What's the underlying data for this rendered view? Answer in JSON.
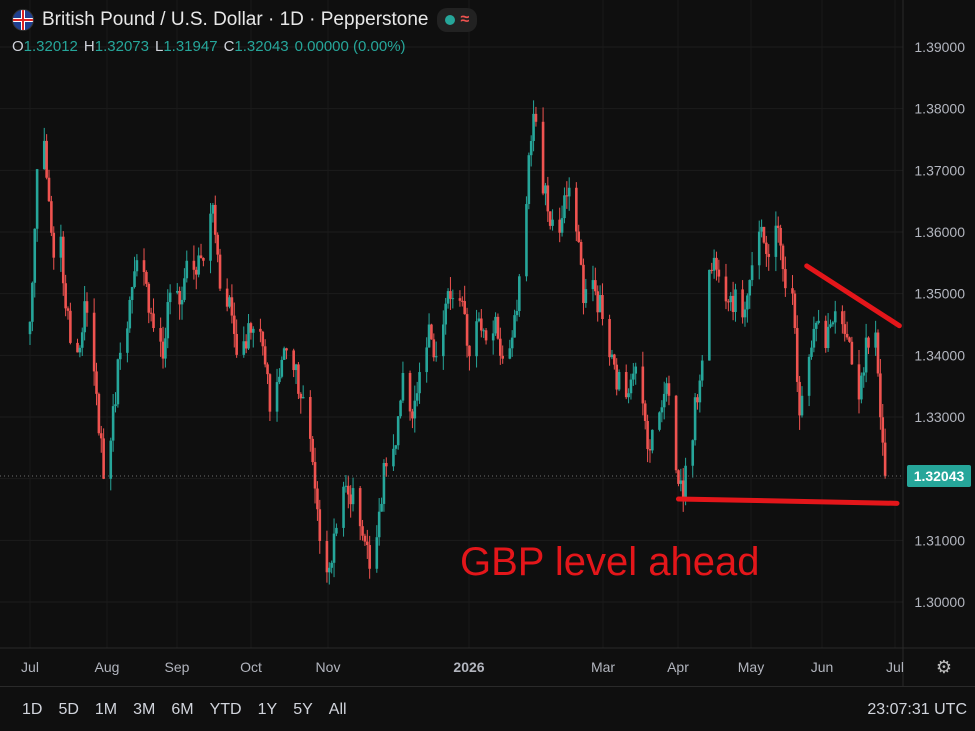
{
  "header": {
    "title": "British Pound / U.S. Dollar · 1D · Pepperstone",
    "ohlc": {
      "o_label": "O",
      "o": "1.32012",
      "h_label": "H",
      "h": "1.32073",
      "l_label": "L",
      "l": "1.31947",
      "c_label": "C",
      "c": "1.32043",
      "change": "0.00000 (0.00%)"
    }
  },
  "timeframes": [
    "1D",
    "5D",
    "1M",
    "3M",
    "6M",
    "YTD",
    "1Y",
    "5Y",
    "All"
  ],
  "clock": "23:07:31 UTC",
  "annotation": "GBP level ahead",
  "colors": {
    "up": "#26a69a",
    "down": "#ef5350",
    "annotation": "#e4161a",
    "background": "#0f0f0f"
  },
  "chart_data": {
    "type": "candlestick",
    "title": "British Pound / U.S. Dollar · 1D · Pepperstone",
    "ylim": [
      1.295,
      1.392
    ],
    "y_ticks": [
      "1.39000",
      "1.38000",
      "1.37000",
      "1.36000",
      "1.35000",
      "1.34000",
      "1.33000",
      "1.32000",
      "1.31000",
      "1.30000"
    ],
    "last_price": "1.32043",
    "x_labels": [
      "Jul",
      "Aug",
      "Sep",
      "Oct",
      "Nov",
      "2026",
      "Mar",
      "Apr",
      "May",
      "Jun",
      "Jul"
    ],
    "close_path": [
      [
        "2025-07-01",
        1.345
      ],
      [
        "2025-07-04",
        1.368
      ],
      [
        "2025-07-07",
        1.374
      ],
      [
        "2025-07-10",
        1.358
      ],
      [
        "2025-07-14",
        1.357
      ],
      [
        "2025-07-17",
        1.345
      ],
      [
        "2025-07-21",
        1.341
      ],
      [
        "2025-07-24",
        1.348
      ],
      [
        "2025-07-28",
        1.336
      ],
      [
        "2025-07-31",
        1.326
      ],
      [
        "2025-08-01",
        1.32
      ],
      [
        "2025-08-05",
        1.33
      ],
      [
        "2025-08-08",
        1.342
      ],
      [
        "2025-08-12",
        1.348
      ],
      [
        "2025-08-15",
        1.354
      ],
      [
        "2025-08-18",
        1.352
      ],
      [
        "2025-08-22",
        1.346
      ],
      [
        "2025-08-26",
        1.34
      ],
      [
        "2025-08-29",
        1.351
      ],
      [
        "2025-09-02",
        1.348
      ],
      [
        "2025-09-05",
        1.355
      ],
      [
        "2025-09-09",
        1.354
      ],
      [
        "2025-09-12",
        1.356
      ],
      [
        "2025-09-16",
        1.364
      ],
      [
        "2025-09-19",
        1.352
      ],
      [
        "2025-09-23",
        1.349
      ],
      [
        "2025-09-26",
        1.341
      ],
      [
        "2025-09-30",
        1.343
      ],
      [
        "2025-10-03",
        1.346
      ],
      [
        "2025-10-07",
        1.341
      ],
      [
        "2025-10-10",
        1.332
      ],
      [
        "2025-10-14",
        1.337
      ],
      [
        "2025-10-17",
        1.342
      ],
      [
        "2025-10-21",
        1.338
      ],
      [
        "2025-10-24",
        1.332
      ],
      [
        "2025-10-28",
        1.323
      ],
      [
        "2025-10-31",
        1.311
      ],
      [
        "2025-11-04",
        1.304
      ],
      [
        "2025-11-07",
        1.314
      ],
      [
        "2025-11-11",
        1.318
      ],
      [
        "2025-11-14",
        1.317
      ],
      [
        "2025-11-18",
        1.312
      ],
      [
        "2025-11-21",
        1.306
      ],
      [
        "2025-11-25",
        1.315
      ],
      [
        "2025-11-28",
        1.323
      ],
      [
        "2025-12-02",
        1.325
      ],
      [
        "2025-12-05",
        1.335
      ],
      [
        "2025-12-09",
        1.331
      ],
      [
        "2025-12-12",
        1.336
      ],
      [
        "2025-12-16",
        1.343
      ],
      [
        "2025-12-19",
        1.338
      ],
      [
        "2025-12-23",
        1.348
      ],
      [
        "2025-12-26",
        1.35
      ],
      [
        "2025-12-30",
        1.347
      ],
      [
        "2026-01-02",
        1.341
      ],
      [
        "2026-01-06",
        1.348
      ],
      [
        "2026-01-09",
        1.341
      ],
      [
        "2026-01-13",
        1.346
      ],
      [
        "2026-01-16",
        1.339
      ],
      [
        "2026-01-20",
        1.341
      ],
      [
        "2026-01-23",
        1.352
      ],
      [
        "2026-01-27",
        1.371
      ],
      [
        "2026-01-29",
        1.38
      ],
      [
        "2026-02-02",
        1.368
      ],
      [
        "2026-02-05",
        1.362
      ],
      [
        "2026-02-09",
        1.36
      ],
      [
        "2026-02-12",
        1.366
      ],
      [
        "2026-02-16",
        1.362
      ],
      [
        "2026-02-19",
        1.35
      ],
      [
        "2026-02-23",
        1.351
      ],
      [
        "2026-02-26",
        1.348
      ],
      [
        "2026-03-02",
        1.34
      ],
      [
        "2026-03-05",
        1.336
      ],
      [
        "2026-03-09",
        1.334
      ],
      [
        "2026-03-12",
        1.339
      ],
      [
        "2026-03-16",
        1.331
      ],
      [
        "2026-03-19",
        1.325
      ],
      [
        "2026-03-23",
        1.331
      ],
      [
        "2026-03-26",
        1.337
      ],
      [
        "2026-03-30",
        1.321
      ],
      [
        "2026-04-02",
        1.318
      ],
      [
        "2026-04-06",
        1.328
      ],
      [
        "2026-04-09",
        1.337
      ],
      [
        "2026-04-13",
        1.353
      ],
      [
        "2026-04-16",
        1.356
      ],
      [
        "2026-04-20",
        1.351
      ],
      [
        "2026-04-23",
        1.349
      ],
      [
        "2026-04-27",
        1.347
      ],
      [
        "2026-04-30",
        1.353
      ],
      [
        "2026-05-04",
        1.36
      ],
      [
        "2026-05-07",
        1.356
      ],
      [
        "2026-05-11",
        1.362
      ],
      [
        "2026-05-14",
        1.354
      ],
      [
        "2026-05-18",
        1.349
      ],
      [
        "2026-05-21",
        1.332
      ],
      [
        "2026-05-25",
        1.341
      ],
      [
        "2026-05-28",
        1.345
      ],
      [
        "2026-06-01",
        1.341
      ],
      [
        "2026-06-04",
        1.347
      ],
      [
        "2026-06-08",
        1.345
      ],
      [
        "2026-06-11",
        1.34
      ],
      [
        "2026-06-15",
        1.332
      ],
      [
        "2026-06-18",
        1.341
      ],
      [
        "2026-06-22",
        1.342
      ],
      [
        "2026-06-24",
        1.328
      ],
      [
        "2026-06-26",
        1.3204
      ]
    ],
    "drawings": [
      {
        "kind": "support-line",
        "points": [
          [
            "2026-03-31",
            1.3167
          ],
          [
            "2026-07-01",
            1.316
          ]
        ]
      },
      {
        "kind": "resistance-line",
        "points": [
          [
            "2026-05-24",
            1.3545
          ],
          [
            "2026-07-02",
            1.3448
          ]
        ]
      }
    ]
  }
}
